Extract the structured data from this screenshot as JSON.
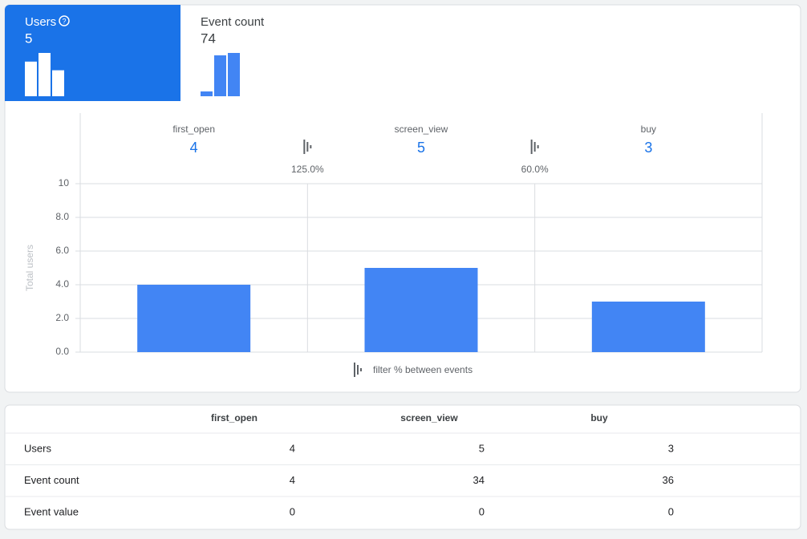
{
  "tabs": [
    {
      "label": "Users",
      "value": 5
    },
    {
      "label": "Event count",
      "value": 74
    }
  ],
  "chart_data": {
    "type": "bar",
    "y_label": "Total users",
    "categories": [
      "first_open",
      "screen_view",
      "buy"
    ],
    "values": [
      4,
      5,
      3
    ],
    "color": "#4285f4",
    "ylim": [
      0,
      10
    ],
    "yticks": [
      {
        "value": 0,
        "label": "0.0"
      },
      {
        "value": 2,
        "label": "2.0"
      },
      {
        "value": 4,
        "label": "4.0"
      },
      {
        "value": 6,
        "label": "6.0"
      },
      {
        "value": 8,
        "label": "8.0"
      },
      10
    ],
    "grid": true,
    "step_labels": [
      "125.0%",
      "60.0%"
    ],
    "legend_note": "filter % between events"
  },
  "table": {
    "columns": [
      "first_open",
      "screen_view",
      "buy"
    ],
    "rows": [
      {
        "label": "Users",
        "values": [
          4,
          5,
          3
        ]
      },
      {
        "label": "Event count",
        "values": [
          4,
          34,
          36
        ]
      },
      {
        "label": "Event value",
        "values": [
          0,
          0,
          0
        ]
      }
    ]
  }
}
